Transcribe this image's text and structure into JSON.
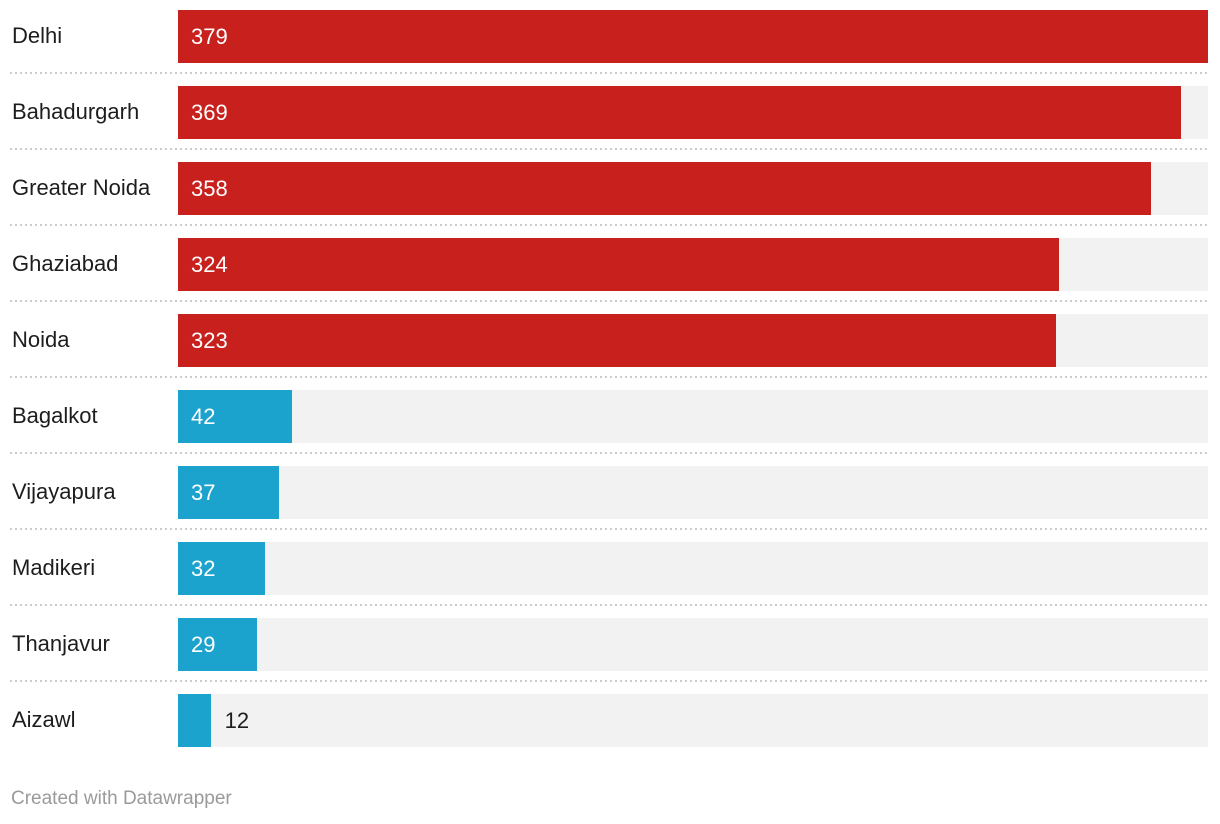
{
  "chart_data": {
    "type": "bar",
    "orientation": "horizontal",
    "title": "",
    "xlabel": "",
    "ylabel": "",
    "xlim": [
      0,
      379
    ],
    "grid": false,
    "legend": false,
    "categories": [
      "Delhi",
      "Bahadurgarh",
      "Greater Noida",
      "Ghaziabad",
      "Noida",
      "Bagalkot",
      "Vijayapura",
      "Madikeri",
      "Thanjavur",
      "Aizawl"
    ],
    "values": [
      379,
      369,
      358,
      324,
      323,
      42,
      37,
      32,
      29,
      12
    ],
    "bars": [
      {
        "label": "Delhi",
        "value": 379,
        "color": "#c7201d"
      },
      {
        "label": "Bahadurgarh",
        "value": 369,
        "color": "#c7201d"
      },
      {
        "label": "Greater Noida",
        "value": 358,
        "color": "#c7201d"
      },
      {
        "label": "Ghaziabad",
        "value": 324,
        "color": "#c7201d"
      },
      {
        "label": "Noida",
        "value": 323,
        "color": "#c7201d"
      },
      {
        "label": "Bagalkot",
        "value": 42,
        "color": "#1ba3ce"
      },
      {
        "label": "Vijayapura",
        "value": 37,
        "color": "#1ba3ce"
      },
      {
        "label": "Madikeri",
        "value": 32,
        "color": "#1ba3ce"
      },
      {
        "label": "Thanjavur",
        "value": 29,
        "color": "#1ba3ce"
      },
      {
        "label": "Aizawl",
        "value": 12,
        "color": "#1ba3ce"
      }
    ],
    "colors": {
      "high": "#c7201d",
      "low": "#1ba3ce",
      "track": "#f2f2f2",
      "separator": "#cccccc",
      "value_inside": "#ffffff",
      "value_outside": "#1d1d1d",
      "category_label": "#1d1d1d"
    }
  },
  "footer": {
    "text": "Created with Datawrapper",
    "color": "#9a9a9a"
  }
}
